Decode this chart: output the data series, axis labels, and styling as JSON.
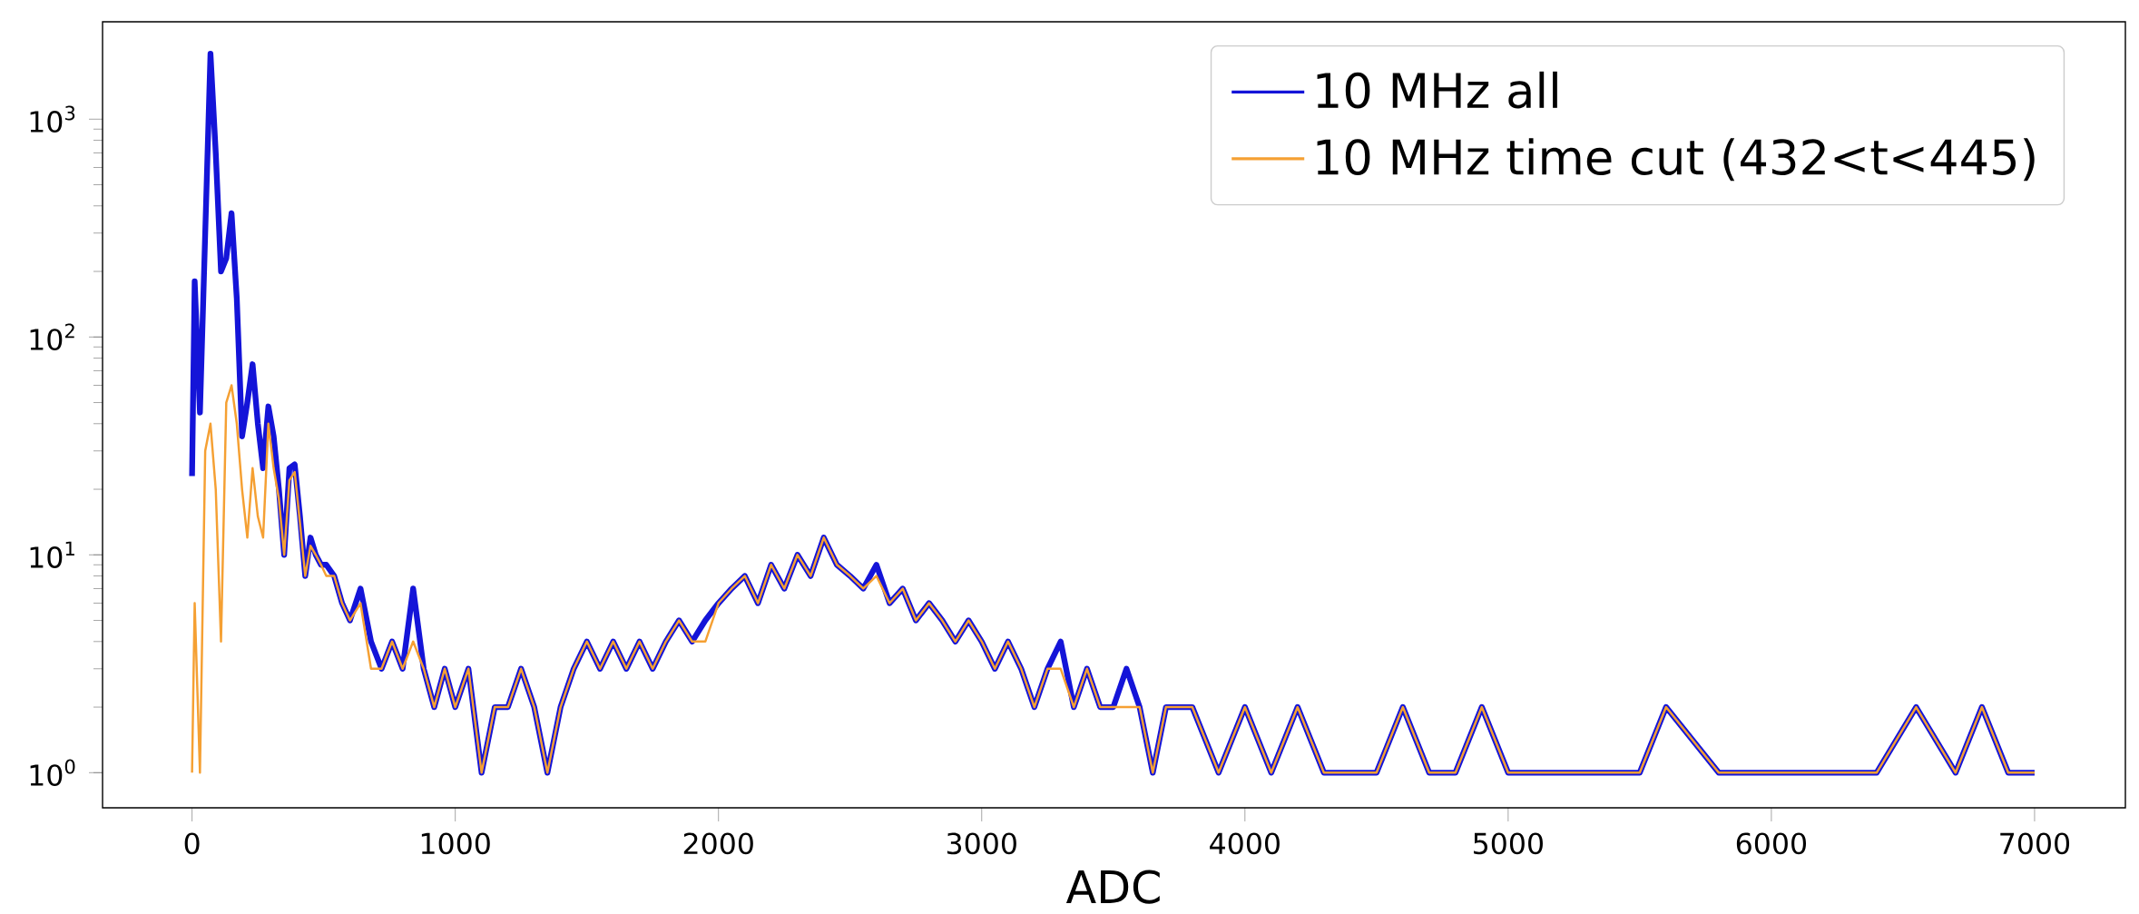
{
  "chart_data": {
    "type": "line",
    "xlabel": "ADC",
    "log": "y",
    "legend": "top right",
    "xlim": [
      -340,
      7345
    ],
    "ylim": [
      0.69,
      2800
    ],
    "xticks": [
      0,
      1000,
      2000,
      3000,
      4000,
      5000,
      6000,
      7000
    ],
    "yticks": [
      {
        "value": 1,
        "label": "10$^{0}$"
      },
      {
        "value": 10,
        "label": "10$^{1}$"
      },
      {
        "value": 100,
        "label": "10$^{2}$"
      },
      {
        "value": 1000,
        "label": "10$^{3}$"
      }
    ],
    "series": [
      {
        "name": "10 MHz all",
        "color": "#1414d8",
        "x": [
          0,
          10,
          30,
          50,
          70,
          90,
          110,
          130,
          150,
          170,
          190,
          210,
          230,
          250,
          270,
          290,
          310,
          330,
          350,
          370,
          390,
          410,
          430,
          450,
          470,
          490,
          510,
          540,
          570,
          600,
          640,
          680,
          720,
          760,
          800,
          840,
          880,
          920,
          960,
          1000,
          1050,
          1100,
          1150,
          1200,
          1250,
          1300,
          1350,
          1400,
          1450,
          1500,
          1550,
          1600,
          1650,
          1700,
          1750,
          1800,
          1850,
          1900,
          1950,
          2000,
          2050,
          2100,
          2150,
          2200,
          2250,
          2300,
          2350,
          2400,
          2450,
          2500,
          2550,
          2600,
          2650,
          2700,
          2750,
          2800,
          2850,
          2900,
          2950,
          3000,
          3050,
          3100,
          3150,
          3200,
          3250,
          3300,
          3350,
          3400,
          3450,
          3500,
          3550,
          3600,
          3650,
          3700,
          3800,
          3900,
          4000,
          4100,
          4200,
          4300,
          4400,
          4500,
          4600,
          4700,
          4800,
          4900,
          5000,
          5100,
          5200,
          5300,
          5500,
          5600,
          5800,
          6000,
          6200,
          6400,
          6550,
          6700,
          6800,
          6900,
          7000
        ],
        "values": [
          23,
          180,
          45,
          300,
          2000,
          700,
          200,
          230,
          370,
          150,
          35,
          50,
          75,
          40,
          25,
          48,
          35,
          20,
          10,
          25,
          26,
          15,
          8,
          12,
          10,
          9,
          9,
          8,
          6,
          5,
          7,
          4,
          3,
          4,
          3,
          7,
          3,
          2,
          3,
          2,
          3,
          1,
          2,
          2,
          3,
          2,
          1,
          2,
          3,
          4,
          3,
          4,
          3,
          4,
          3,
          4,
          5,
          4,
          5,
          6,
          7,
          8,
          6,
          9,
          7,
          10,
          8,
          12,
          9,
          8,
          7,
          9,
          6,
          7,
          5,
          6,
          5,
          4,
          5,
          4,
          3,
          4,
          3,
          2,
          3,
          4,
          2,
          3,
          2,
          2,
          3,
          2,
          1,
          2,
          2,
          1,
          2,
          1,
          2,
          1,
          1,
          1,
          2,
          1,
          1,
          2,
          1,
          1,
          1,
          1,
          1,
          2,
          1,
          1,
          1,
          1,
          2,
          1,
          2,
          1,
          1
        ]
      },
      {
        "name": "10 MHz time cut (432<t<445)",
        "color": "#f5a033",
        "x": [
          0,
          10,
          30,
          50,
          70,
          90,
          110,
          130,
          150,
          170,
          190,
          210,
          230,
          250,
          270,
          290,
          310,
          330,
          350,
          370,
          390,
          410,
          430,
          450,
          470,
          490,
          510,
          540,
          570,
          600,
          640,
          680,
          720,
          760,
          800,
          840,
          880,
          920,
          960,
          1000,
          1050,
          1100,
          1150,
          1200,
          1250,
          1300,
          1350,
          1400,
          1450,
          1500,
          1550,
          1600,
          1650,
          1700,
          1750,
          1800,
          1850,
          1900,
          1950,
          2000,
          2050,
          2100,
          2150,
          2200,
          2250,
          2300,
          2350,
          2400,
          2450,
          2500,
          2550,
          2600,
          2650,
          2700,
          2750,
          2800,
          2850,
          2900,
          2950,
          3000,
          3050,
          3100,
          3150,
          3200,
          3250,
          3300,
          3350,
          3400,
          3450,
          3500,
          3550,
          3600,
          3650,
          3700,
          3800,
          3900,
          4000,
          4100,
          4200,
          4300,
          4400,
          4500,
          4600,
          4700,
          4800,
          4900,
          5000,
          5100,
          5200,
          5300,
          5500,
          5600,
          5800,
          6000,
          6200,
          6400,
          6550,
          6700,
          6800,
          6900,
          7000
        ],
        "values": [
          1,
          6,
          1,
          30,
          40,
          20,
          4,
          50,
          60,
          40,
          20,
          12,
          25,
          15,
          12,
          40,
          25,
          18,
          10,
          22,
          24,
          14,
          8,
          11,
          10,
          9,
          8,
          8,
          6,
          5,
          6,
          3,
          3,
          4,
          3,
          4,
          3,
          2,
          3,
          2,
          3,
          1,
          2,
          2,
          3,
          2,
          1,
          2,
          3,
          4,
          3,
          4,
          3,
          4,
          3,
          4,
          5,
          4,
          4,
          6,
          7,
          8,
          6,
          9,
          7,
          10,
          8,
          12,
          9,
          8,
          7,
          8,
          6,
          7,
          5,
          6,
          5,
          4,
          5,
          4,
          3,
          4,
          3,
          2,
          3,
          3,
          2,
          3,
          2,
          2,
          2,
          2,
          1,
          2,
          2,
          1,
          2,
          1,
          2,
          1,
          1,
          1,
          2,
          1,
          1,
          2,
          1,
          1,
          1,
          1,
          1,
          2,
          1,
          1,
          1,
          1,
          2,
          1,
          2,
          1,
          1
        ]
      }
    ]
  }
}
